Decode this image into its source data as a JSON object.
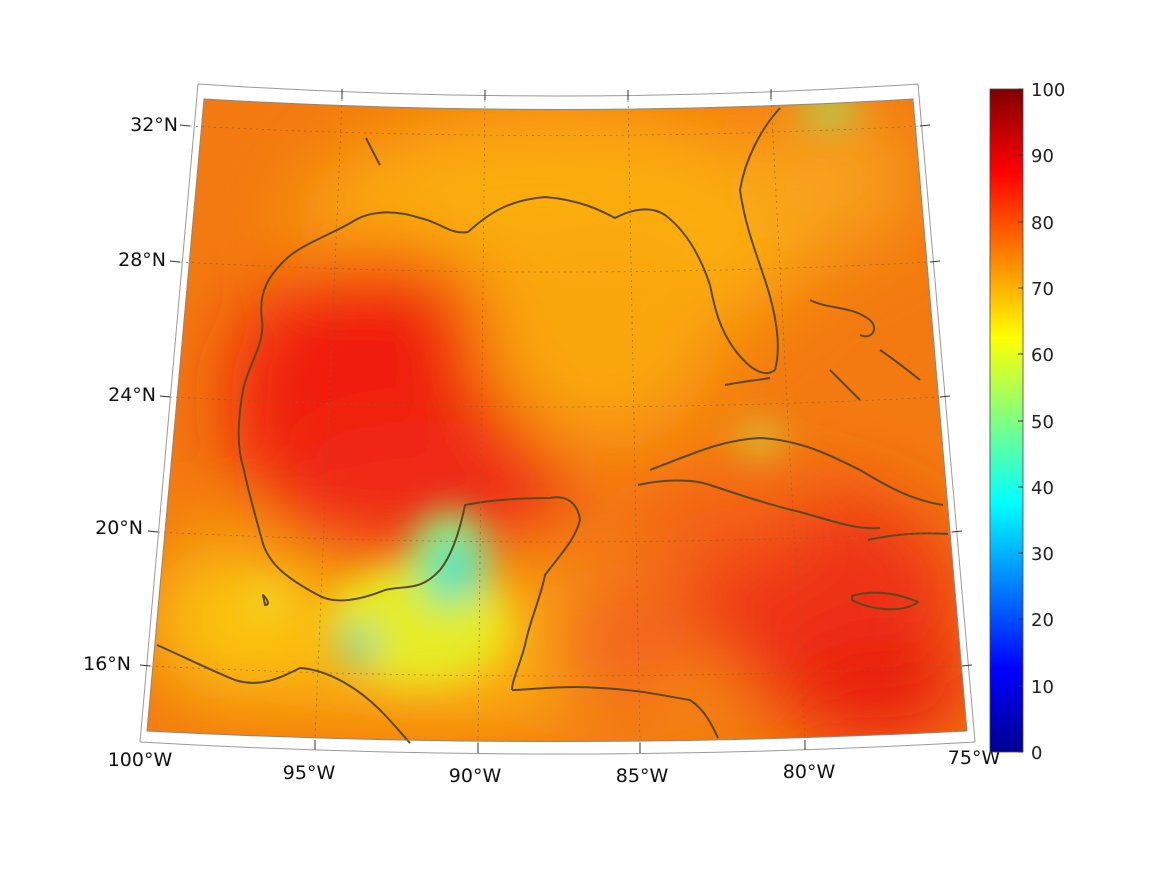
{
  "map": {
    "projection": "conic",
    "lon_range": [
      -100,
      -75
    ],
    "lat_range": [
      14,
      33
    ],
    "lon_labels": [
      "100°W",
      "95°W",
      "90°W",
      "85°W",
      "80°W",
      "75°W"
    ],
    "lat_labels": [
      "32°N",
      "28°N",
      "24°N",
      "20°N",
      "16°N"
    ],
    "grid": true,
    "coastline_color": "#5a4a1e",
    "field": {
      "colormap": "jet",
      "hotspots": [
        {
          "lon": -93,
          "lat": 26,
          "value": 88
        },
        {
          "lon": -84,
          "lat": 17,
          "value": 86
        },
        {
          "lon": -77,
          "lat": 15,
          "value": 88
        },
        {
          "lon": -87,
          "lat": 25,
          "value": 72
        },
        {
          "lon": -90.5,
          "lat": 19.5,
          "value": 45
        },
        {
          "lon": -91.5,
          "lat": 17.3,
          "value": 50
        },
        {
          "lon": -79,
          "lat": 28,
          "value": 75
        }
      ]
    }
  },
  "colorbar": {
    "min": 0,
    "max": 100,
    "ticks": [
      "100",
      "90",
      "80",
      "70",
      "60",
      "50",
      "40",
      "30",
      "20",
      "10",
      "0"
    ],
    "colors": {
      "low": "#00008f",
      "mid": "#80ff80",
      "high": "#800000"
    }
  }
}
